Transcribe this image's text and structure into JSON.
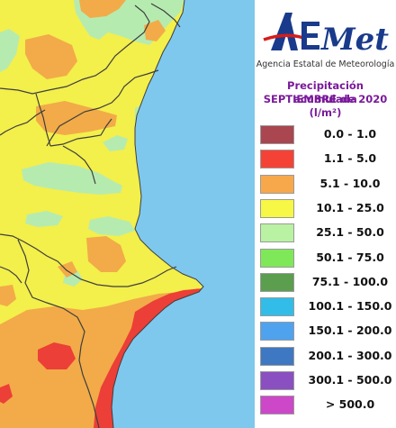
{
  "logo": {
    "wordmark": "AEMet",
    "agency": "Agencia Estatal de Meteorología"
  },
  "title": {
    "line1": "Precipitación acumulada",
    "line2": "SEPTIEMBRE de 2020",
    "unit": "(l/m²)"
  },
  "legend": [
    {
      "label": "0.0 - 1.0",
      "color": "#a9464f"
    },
    {
      "label": "1.1 - 5.0",
      "color": "#f44336"
    },
    {
      "label": "5.1 - 10.0",
      "color": "#f7a84a"
    },
    {
      "label": "10.1 - 25.0",
      "color": "#f7f745"
    },
    {
      "label": "25.1 - 50.0",
      "color": "#b9f2a2"
    },
    {
      "label": "50.1 - 75.0",
      "color": "#7fe858"
    },
    {
      "label": "75.1 - 100.0",
      "color": "#5a9e4e"
    },
    {
      "label": "100.1 - 150.0",
      "color": "#31bde8"
    },
    {
      "label": "150.1 - 200.0",
      "color": "#4fa2ee"
    },
    {
      "label": "200.1 - 300.0",
      "color": "#3f78c2"
    },
    {
      "label": "300.1 - 500.0",
      "color": "#8a4fc0"
    },
    {
      "label": "> 500.0",
      "color": "#cc48c8"
    }
  ],
  "map_colors": {
    "sea": "#7ec8ee",
    "yellow": "#f3ef4b",
    "orange": "#f2ab48",
    "red": "#ec3f37",
    "green": "#b6ebb0",
    "border": "#3e3e3e"
  }
}
